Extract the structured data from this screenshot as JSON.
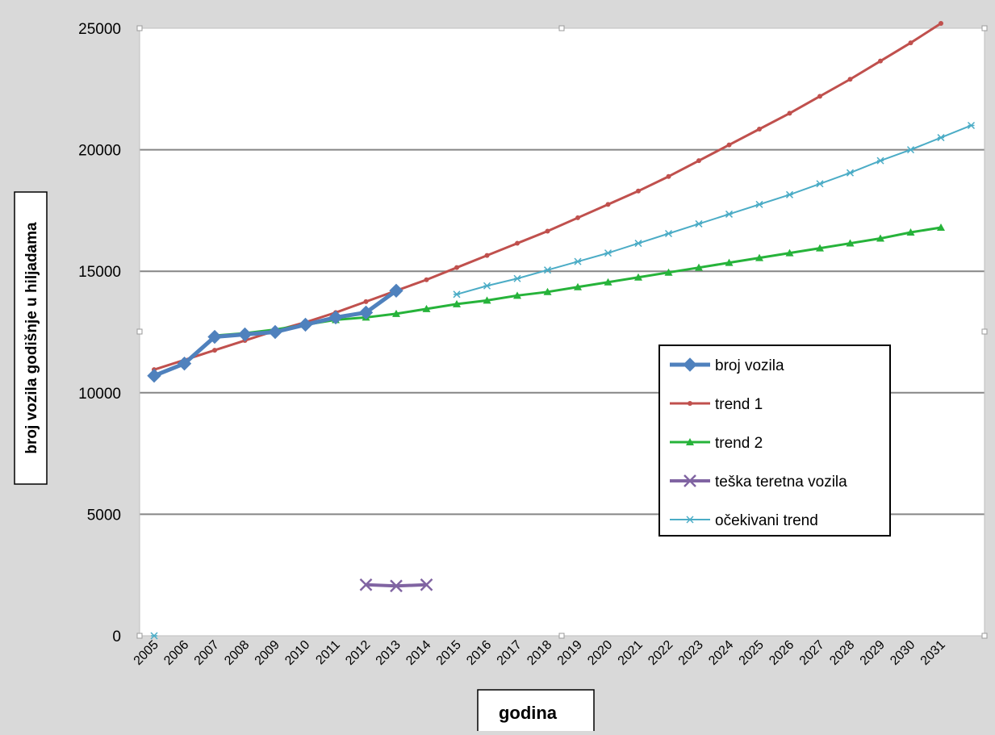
{
  "chart_data": {
    "type": "line",
    "xlabel": "godina",
    "ylabel": "broj vozila godišnje u hiljadama",
    "ylim": [
      0,
      25000
    ],
    "yticks": [
      0,
      5000,
      10000,
      15000,
      20000,
      25000
    ],
    "categories": [
      "2005",
      "2006",
      "2007",
      "2008",
      "2009",
      "2010",
      "2011",
      "2012",
      "2013",
      "2014",
      "2015",
      "2016",
      "2017",
      "2018",
      "2019",
      "2020",
      "2021",
      "2022",
      "2023",
      "2024",
      "2025",
      "2026",
      "2027",
      "2028",
      "2029",
      "2030",
      "2031"
    ],
    "grid": "horizontal",
    "legend_position": "right",
    "series": [
      {
        "name": "broj vozila",
        "color": "#4f81bd",
        "marker": "diamond",
        "width": 5,
        "points": [
          [
            2005,
            10700
          ],
          [
            2006,
            11200
          ],
          [
            2007,
            12300
          ],
          [
            2008,
            12400
          ],
          [
            2009,
            12500
          ],
          [
            2010,
            12800
          ],
          [
            2011,
            13100
          ],
          [
            2012,
            13300
          ],
          [
            2013,
            14200
          ]
        ]
      },
      {
        "name": "trend 1",
        "color": "#c0504d",
        "marker": "dot",
        "width": 3,
        "points": [
          [
            2005,
            10950
          ],
          [
            2006,
            11350
          ],
          [
            2007,
            11750
          ],
          [
            2008,
            12150
          ],
          [
            2009,
            12550
          ],
          [
            2010,
            12900
          ],
          [
            2011,
            13300
          ],
          [
            2012,
            13750
          ],
          [
            2013,
            14200
          ],
          [
            2014,
            14650
          ],
          [
            2015,
            15150
          ],
          [
            2016,
            15650
          ],
          [
            2017,
            16150
          ],
          [
            2018,
            16650
          ],
          [
            2019,
            17200
          ],
          [
            2020,
            17750
          ],
          [
            2021,
            18300
          ],
          [
            2022,
            18900
          ],
          [
            2023,
            19550
          ],
          [
            2024,
            20200
          ],
          [
            2025,
            20850
          ],
          [
            2026,
            21500
          ],
          [
            2027,
            22200
          ],
          [
            2028,
            22900
          ],
          [
            2029,
            23650
          ],
          [
            2030,
            24400
          ],
          [
            2031,
            25200
          ]
        ]
      },
      {
        "name": "trend 2",
        "color": "#26b33a",
        "marker": "triangle",
        "width": 3,
        "points": [
          [
            2007,
            12350
          ],
          [
            2008,
            12450
          ],
          [
            2009,
            12600
          ],
          [
            2010,
            12800
          ],
          [
            2011,
            13000
          ],
          [
            2012,
            13100
          ],
          [
            2013,
            13250
          ],
          [
            2014,
            13450
          ],
          [
            2015,
            13650
          ],
          [
            2016,
            13800
          ],
          [
            2017,
            14000
          ],
          [
            2018,
            14150
          ],
          [
            2019,
            14350
          ],
          [
            2020,
            14550
          ],
          [
            2021,
            14750
          ],
          [
            2022,
            14950
          ],
          [
            2023,
            15150
          ],
          [
            2024,
            15350
          ],
          [
            2025,
            15550
          ],
          [
            2026,
            15750
          ],
          [
            2027,
            15950
          ],
          [
            2028,
            16150
          ],
          [
            2029,
            16350
          ],
          [
            2030,
            16600
          ],
          [
            2031,
            16800
          ]
        ]
      },
      {
        "name": "teška teretna vozila",
        "color": "#8064a2",
        "marker": "x",
        "width": 4,
        "points": [
          [
            2012,
            2100
          ],
          [
            2013,
            2050
          ],
          [
            2014,
            2100
          ]
        ]
      },
      {
        "name": "očekivani trend",
        "color": "#4bacc6",
        "marker": "star",
        "width": 2,
        "points": [
          [
            2005,
            0
          ],
          [
            2015,
            14050
          ],
          [
            2016,
            14400
          ],
          [
            2017,
            14700
          ],
          [
            2018,
            15050
          ],
          [
            2019,
            15400
          ],
          [
            2020,
            15750
          ],
          [
            2021,
            16150
          ],
          [
            2022,
            16550
          ],
          [
            2023,
            16950
          ],
          [
            2024,
            17350
          ],
          [
            2025,
            17750
          ],
          [
            2026,
            18150
          ],
          [
            2027,
            18600
          ],
          [
            2028,
            19050
          ],
          [
            2029,
            19550
          ],
          [
            2030,
            20000
          ],
          [
            2031,
            20500
          ],
          [
            2032,
            21000
          ]
        ]
      }
    ]
  }
}
